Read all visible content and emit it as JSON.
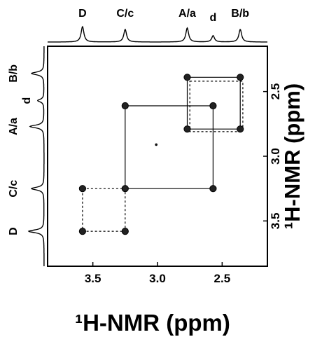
{
  "chart_data": {
    "type": "scatter",
    "subtype": "2D NMR correlation map (COSY-style) with 1D projections",
    "xlabel": "¹H-NMR (ppm)",
    "ylabel": "¹H-NMR (ppm)",
    "xlim": [
      3.85,
      2.15
    ],
    "ylim": [
      2.15,
      3.85
    ],
    "x_reversed": true,
    "y_reversed": true,
    "x_ticks": [
      "3.5",
      "3.0",
      "2.5"
    ],
    "y_ticks": [
      "2.5",
      "3.0",
      "3.5"
    ],
    "x_tick_values": [
      3.5,
      3.0,
      2.5
    ],
    "y_tick_values": [
      2.5,
      3.0,
      3.5
    ],
    "peaks": [
      {
        "label": "D",
        "shift": 3.58
      },
      {
        "label": "C/c",
        "shift": 3.25
      },
      {
        "label": "A/a",
        "shift": 2.77
      },
      {
        "label": "d",
        "shift": 2.57
      },
      {
        "label": "B/b",
        "shift": 2.36
      }
    ],
    "cross_peaks": [
      {
        "x": 3.58,
        "y": 3.58
      },
      {
        "x": 3.58,
        "y": 3.25
      },
      {
        "x": 3.25,
        "y": 3.58
      },
      {
        "x": 3.25,
        "y": 3.25
      },
      {
        "x": 3.25,
        "y": 2.61
      },
      {
        "x": 2.57,
        "y": 2.61
      },
      {
        "x": 2.57,
        "y": 3.25
      },
      {
        "x": 2.77,
        "y": 2.39
      },
      {
        "x": 2.36,
        "y": 2.39
      },
      {
        "x": 2.77,
        "y": 2.79
      },
      {
        "x": 2.36,
        "y": 2.79
      },
      {
        "x": 3.01,
        "y": 2.91
      }
    ],
    "connections": [
      {
        "points": [
          [
            3.58,
            3.25
          ],
          [
            3.25,
            3.25
          ],
          [
            3.25,
            3.58
          ],
          [
            3.58,
            3.58
          ]
        ],
        "closed": true,
        "style": "dotted"
      },
      {
        "points": [
          [
            3.25,
            2.61
          ],
          [
            2.57,
            2.61
          ],
          [
            2.57,
            3.25
          ],
          [
            3.25,
            3.25
          ]
        ],
        "closed": true,
        "style": "solid"
      },
      {
        "points": [
          [
            2.77,
            2.39
          ],
          [
            2.36,
            2.39
          ],
          [
            2.36,
            2.79
          ],
          [
            2.77,
            2.79
          ]
        ],
        "closed": true,
        "style": "solid"
      },
      {
        "points": [
          [
            2.75,
            2.42
          ],
          [
            2.34,
            2.42
          ],
          [
            2.34,
            2.81
          ],
          [
            2.75,
            2.81
          ]
        ],
        "closed": true,
        "style": "dotted"
      }
    ],
    "legend": "none",
    "grid": false
  }
}
